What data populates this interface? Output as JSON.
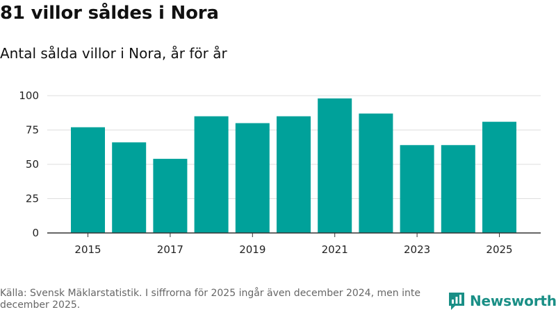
{
  "title": "81 villor såldes i Nora",
  "subtitle": "Antal sålda villor i Nora, år för år",
  "source": "Källa: Svensk Mäklarstatistik. I siffrorna för 2025 ingår även december 2024, men inte december 2025.",
  "logo": {
    "text": "Newsworthy",
    "icon": "newsworthy-chart-logo-icon"
  },
  "colors": {
    "bar": "#00a19a",
    "grid": "#dddddd",
    "axis": "#333333",
    "logo": "#1a8f86"
  },
  "chart_data": {
    "type": "bar",
    "title": "81 villor såldes i Nora",
    "subtitle": "Antal sålda villor i Nora, år för år",
    "xlabel": "",
    "ylabel": "",
    "categories": [
      "2015",
      "2016",
      "2017",
      "2018",
      "2019",
      "2020",
      "2021",
      "2022",
      "2023",
      "2024",
      "2025"
    ],
    "values": [
      77,
      66,
      54,
      85,
      80,
      85,
      98,
      87,
      64,
      64,
      81
    ],
    "x_tick_labels": [
      "2015",
      "2017",
      "2019",
      "2021",
      "2023",
      "2025"
    ],
    "y_ticks": [
      0,
      25,
      50,
      75,
      100
    ],
    "ylim": [
      0,
      100
    ],
    "grid": true,
    "legend": "none"
  }
}
